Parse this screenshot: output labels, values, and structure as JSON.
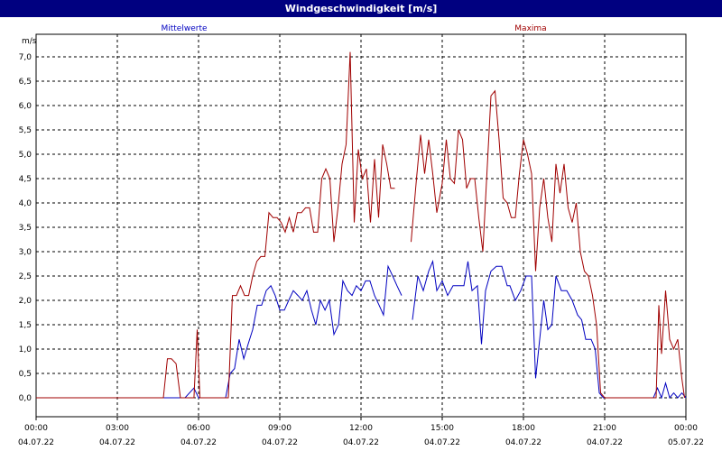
{
  "window": {
    "title": "Windgeschwindigkeit [m/s]"
  },
  "chart_data": {
    "type": "line",
    "ylabel": "m/s",
    "ylim": [
      0,
      7.5
    ],
    "yticks": [
      "0,0",
      "0,5",
      "1,0",
      "1,5",
      "2,0",
      "2,5",
      "3,0",
      "3,5",
      "4,0",
      "4,5",
      "5,0",
      "5,5",
      "6,0",
      "6,5",
      "7,0"
    ],
    "xlim": [
      0,
      24
    ],
    "xticks": [
      {
        "time": "00:00",
        "date": "04.07.22"
      },
      {
        "time": "03:00",
        "date": "04.07.22"
      },
      {
        "time": "06:00",
        "date": "04.07.22"
      },
      {
        "time": "09:00",
        "date": "04.07.22"
      },
      {
        "time": "12:00",
        "date": "04.07.22"
      },
      {
        "time": "15:00",
        "date": "04.07.22"
      },
      {
        "time": "18:00",
        "date": "04.07.22"
      },
      {
        "time": "21:00",
        "date": "04.07.22"
      },
      {
        "time": "00:00",
        "date": "05.07.22"
      }
    ],
    "grid": true,
    "series": [
      {
        "name": "Mittelwerte",
        "color": "#0000c0",
        "segments": [
          [
            [
              0,
              0
            ],
            [
              4.8,
              0
            ],
            [
              5.0,
              0
            ],
            [
              5.2,
              0
            ],
            [
              5.5,
              0
            ],
            [
              5.83,
              0.2
            ],
            [
              6.0,
              0
            ],
            [
              7.0,
              0
            ],
            [
              7.17,
              0.5
            ],
            [
              7.33,
              0.6
            ],
            [
              7.5,
              1.2
            ],
            [
              7.67,
              0.8
            ],
            [
              7.83,
              1.1
            ],
            [
              8.0,
              1.4
            ],
            [
              8.17,
              1.9
            ],
            [
              8.33,
              1.9
            ],
            [
              8.5,
              2.2
            ],
            [
              8.67,
              2.3
            ],
            [
              8.83,
              2.1
            ],
            [
              9.0,
              1.8
            ],
            [
              9.17,
              1.8
            ],
            [
              9.33,
              2.0
            ],
            [
              9.5,
              2.2
            ],
            [
              9.67,
              2.1
            ],
            [
              9.83,
              2.0
            ],
            [
              10.0,
              2.2
            ],
            [
              10.17,
              1.8
            ],
            [
              10.33,
              1.5
            ],
            [
              10.5,
              2.0
            ],
            [
              10.67,
              1.8
            ],
            [
              10.83,
              2.0
            ],
            [
              11.0,
              1.3
            ],
            [
              11.17,
              1.5
            ],
            [
              11.33,
              2.4
            ],
            [
              11.5,
              2.2
            ],
            [
              11.67,
              2.1
            ],
            [
              11.83,
              2.3
            ],
            [
              12.0,
              2.2
            ],
            [
              12.17,
              2.4
            ],
            [
              12.33,
              2.4
            ],
            [
              12.5,
              2.1
            ],
            [
              12.67,
              1.9
            ],
            [
              12.83,
              1.7
            ],
            [
              13.0,
              2.7
            ],
            [
              13.17,
              2.5
            ],
            [
              13.33,
              2.3
            ],
            [
              13.5,
              2.1
            ]
          ],
          [
            [
              13.9,
              1.6
            ],
            [
              14.1,
              2.5
            ],
            [
              14.3,
              2.2
            ],
            [
              14.5,
              2.6
            ],
            [
              14.65,
              2.8
            ],
            [
              14.8,
              2.2
            ],
            [
              15.0,
              2.4
            ],
            [
              15.2,
              2.1
            ],
            [
              15.4,
              2.3
            ],
            [
              15.6,
              2.3
            ],
            [
              15.8,
              2.3
            ],
            [
              15.95,
              2.8
            ],
            [
              16.1,
              2.2
            ],
            [
              16.3,
              2.3
            ],
            [
              16.45,
              1.1
            ],
            [
              16.6,
              2.2
            ],
            [
              16.8,
              2.6
            ],
            [
              17.0,
              2.7
            ],
            [
              17.2,
              2.7
            ],
            [
              17.4,
              2.3
            ],
            [
              17.5,
              2.3
            ],
            [
              17.7,
              2.0
            ],
            [
              17.9,
              2.2
            ],
            [
              18.1,
              2.5
            ],
            [
              18.3,
              2.5
            ],
            [
              18.45,
              0.4
            ],
            [
              18.6,
              1.2
            ],
            [
              18.75,
              2.0
            ],
            [
              18.9,
              1.4
            ],
            [
              19.05,
              1.5
            ],
            [
              19.2,
              2.5
            ],
            [
              19.4,
              2.2
            ],
            [
              19.6,
              2.2
            ],
            [
              19.8,
              2.0
            ],
            [
              20.0,
              1.7
            ],
            [
              20.15,
              1.6
            ],
            [
              20.3,
              1.2
            ],
            [
              20.5,
              1.2
            ],
            [
              20.65,
              1.0
            ],
            [
              20.8,
              0.1
            ],
            [
              20.95,
              0
            ],
            [
              21.0,
              0
            ],
            [
              22.8,
              0
            ],
            [
              22.95,
              0.2
            ],
            [
              23.1,
              0
            ],
            [
              23.25,
              0.3
            ],
            [
              23.4,
              0
            ],
            [
              23.55,
              0.1
            ],
            [
              23.7,
              0
            ],
            [
              23.85,
              0.1
            ],
            [
              24.0,
              0
            ]
          ]
        ]
      },
      {
        "name": "Maxima",
        "color": "#a00000",
        "segments": [
          [
            [
              0,
              0
            ],
            [
              4.7,
              0
            ],
            [
              4.85,
              0.8
            ],
            [
              5.0,
              0.8
            ],
            [
              5.17,
              0.7
            ],
            [
              5.33,
              0
            ],
            [
              5.83,
              0
            ],
            [
              5.95,
              1.4
            ],
            [
              6.05,
              0
            ],
            [
              7.0,
              0
            ],
            [
              7.1,
              0
            ],
            [
              7.25,
              2.1
            ],
            [
              7.4,
              2.1
            ],
            [
              7.55,
              2.3
            ],
            [
              7.7,
              2.1
            ],
            [
              7.85,
              2.1
            ],
            [
              8.0,
              2.5
            ],
            [
              8.15,
              2.8
            ],
            [
              8.3,
              2.9
            ],
            [
              8.45,
              2.9
            ],
            [
              8.6,
              3.8
            ],
            [
              8.75,
              3.7
            ],
            [
              8.9,
              3.7
            ],
            [
              9.05,
              3.6
            ],
            [
              9.2,
              3.4
            ],
            [
              9.35,
              3.7
            ],
            [
              9.5,
              3.4
            ],
            [
              9.65,
              3.8
            ],
            [
              9.8,
              3.8
            ],
            [
              9.95,
              3.9
            ],
            [
              10.1,
              3.9
            ],
            [
              10.25,
              3.4
            ],
            [
              10.4,
              3.4
            ],
            [
              10.55,
              4.5
            ],
            [
              10.7,
              4.7
            ],
            [
              10.85,
              4.5
            ],
            [
              11.0,
              3.2
            ],
            [
              11.15,
              3.9
            ],
            [
              11.3,
              4.8
            ],
            [
              11.45,
              5.2
            ],
            [
              11.6,
              7.1
            ],
            [
              11.75,
              3.6
            ],
            [
              11.9,
              5.1
            ],
            [
              12.05,
              4.5
            ],
            [
              12.2,
              4.7
            ],
            [
              12.35,
              3.6
            ],
            [
              12.5,
              4.9
            ],
            [
              12.65,
              3.7
            ],
            [
              12.8,
              5.2
            ],
            [
              12.95,
              4.8
            ],
            [
              13.1,
              4.3
            ],
            [
              13.25,
              4.3
            ]
          ],
          [
            [
              13.85,
              3.2
            ],
            [
              14.05,
              4.5
            ],
            [
              14.2,
              5.4
            ],
            [
              14.35,
              4.6
            ],
            [
              14.5,
              5.3
            ],
            [
              14.65,
              4.6
            ],
            [
              14.8,
              3.8
            ],
            [
              15.0,
              4.4
            ],
            [
              15.15,
              5.3
            ],
            [
              15.3,
              4.5
            ],
            [
              15.45,
              4.4
            ],
            [
              15.6,
              5.5
            ],
            [
              15.75,
              5.3
            ],
            [
              15.9,
              4.3
            ],
            [
              16.05,
              4.5
            ],
            [
              16.2,
              4.5
            ],
            [
              16.35,
              3.7
            ],
            [
              16.5,
              3.0
            ],
            [
              16.65,
              4.6
            ],
            [
              16.8,
              6.2
            ],
            [
              16.95,
              6.3
            ],
            [
              17.1,
              5.3
            ],
            [
              17.25,
              4.1
            ],
            [
              17.4,
              4.0
            ],
            [
              17.55,
              3.7
            ],
            [
              17.7,
              3.7
            ],
            [
              17.85,
              4.6
            ],
            [
              18.0,
              5.3
            ],
            [
              18.15,
              5.0
            ],
            [
              18.3,
              4.6
            ],
            [
              18.45,
              2.6
            ],
            [
              18.6,
              3.9
            ],
            [
              18.75,
              4.5
            ],
            [
              18.9,
              3.7
            ],
            [
              19.05,
              3.2
            ],
            [
              19.2,
              4.8
            ],
            [
              19.35,
              4.2
            ],
            [
              19.5,
              4.8
            ],
            [
              19.65,
              3.9
            ],
            [
              19.8,
              3.6
            ],
            [
              19.95,
              4.0
            ],
            [
              20.1,
              3.0
            ],
            [
              20.25,
              2.6
            ],
            [
              20.4,
              2.5
            ],
            [
              20.55,
              2.1
            ],
            [
              20.7,
              1.5
            ],
            [
              20.85,
              0.1
            ],
            [
              21.0,
              0
            ],
            [
              22.9,
              0
            ],
            [
              23.0,
              1.9
            ],
            [
              23.1,
              0.9
            ],
            [
              23.25,
              2.2
            ],
            [
              23.4,
              1.2
            ],
            [
              23.55,
              1.0
            ],
            [
              23.7,
              1.2
            ],
            [
              23.85,
              0.4
            ],
            [
              23.95,
              0
            ]
          ]
        ]
      }
    ]
  }
}
